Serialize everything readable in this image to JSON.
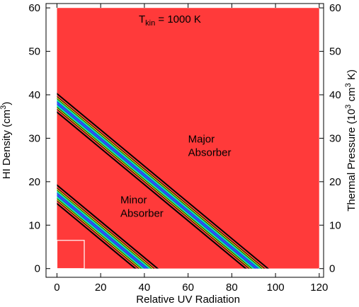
{
  "chart_data": {
    "type": "heatmap",
    "title_main": "T",
    "title_sub": "kin",
    "title_rest": " = 1000 K",
    "xlabel": "Relative UV Radiation",
    "ylabel_left": "HI Density (cm",
    "ylabel_left_sup": "3",
    "ylabel_left_end": ")",
    "ylabel_right": "Thermal Pressure (10",
    "ylabel_right_sup": "3",
    "ylabel_right_mid": " cm",
    "ylabel_right_sup2": "3",
    "ylabel_right_end": " K)",
    "xlim": [
      -5,
      122
    ],
    "ylim": [
      -2,
      61
    ],
    "x_ticks": [
      0,
      20,
      40,
      60,
      80,
      100,
      120
    ],
    "y_ticks": [
      0,
      10,
      20,
      30,
      40,
      50,
      60
    ],
    "y_ticks_right": [
      0,
      10,
      20,
      30,
      40,
      50,
      60
    ],
    "background_color": "#ff3a3a",
    "bands": [
      {
        "name": "Major Absorber",
        "center_at_y0": 91.5,
        "slope": -2.4
      },
      {
        "name": "Minor Absorber",
        "center_at_y0": 41.0,
        "slope": -2.4,
        "x_range": [
          0,
          43
        ]
      }
    ],
    "annotations": [
      {
        "lines": [
          "Major",
          "Absorber"
        ],
        "x": 60,
        "y": 29
      },
      {
        "lines": [
          "Minor",
          "Absorber"
        ],
        "x": 29,
        "y": 15
      }
    ],
    "inset_box": {
      "x": [
        0,
        12.5
      ],
      "y": [
        0,
        6.5
      ]
    }
  }
}
